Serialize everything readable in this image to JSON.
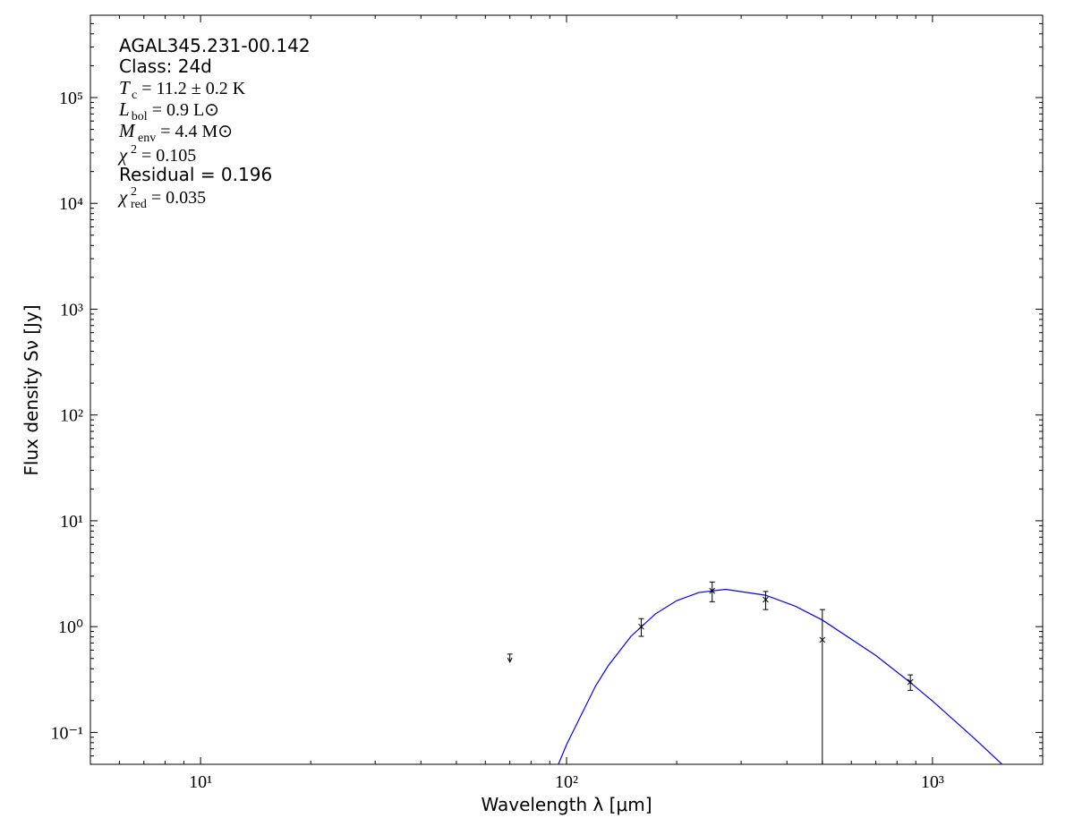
{
  "chart_data": {
    "type": "scatter",
    "xscale": "log",
    "yscale": "log",
    "xlabel": "Wavelength λ [μm]",
    "ylabel": "Flux density Sν [Jy]",
    "xlim": [
      5,
      2000
    ],
    "ylim": [
      0.05,
      600000
    ],
    "xticks": [
      {
        "value": 10,
        "label": "10¹"
      },
      {
        "value": 100,
        "label": "10²"
      },
      {
        "value": 1000,
        "label": "10³"
      }
    ],
    "yticks": [
      {
        "value": 0.1,
        "label": "10⁻¹"
      },
      {
        "value": 1,
        "label": "10⁰"
      },
      {
        "value": 10,
        "label": "10¹"
      },
      {
        "value": 100,
        "label": "10²"
      },
      {
        "value": 1000,
        "label": "10³"
      },
      {
        "value": 10000,
        "label": "10⁴"
      },
      {
        "value": 100000,
        "label": "10⁵"
      }
    ],
    "minor_ticks": true,
    "annotations": [
      {
        "text": "AGAL345.231-00.142"
      },
      {
        "text": "Class: 24d"
      },
      {
        "symbol": "T",
        "sub": "c",
        "rest": "= 11.2 ± 0.2 K"
      },
      {
        "symbol": "L",
        "sub": "bol",
        "rest": "= 0.9 L⊙"
      },
      {
        "symbol": "M",
        "sub": "env",
        "rest": "= 4.4 M⊙"
      },
      {
        "symbol": "χ",
        "sup": "2",
        "rest": "= 0.105"
      },
      {
        "text": "Residual = 0.196"
      },
      {
        "symbol": "χ",
        "sup": "2",
        "sub": "red",
        "rest": "= 0.035"
      }
    ],
    "points": {
      "color": "#000000",
      "x": [
        160,
        250,
        350,
        500,
        870
      ],
      "values": [
        1.0,
        2.18,
        1.8,
        0.75,
        0.3
      ],
      "errors": [
        0.19,
        0.46,
        0.35,
        0.7,
        0.05
      ]
    },
    "upper_limits": {
      "color": "#000000",
      "x": [
        70
      ],
      "values": [
        0.55
      ]
    },
    "fit": {
      "color": "#0000ff",
      "x": [
        95,
        100,
        120,
        130,
        150,
        175,
        200,
        230,
        272,
        350,
        420,
        500,
        700,
        870,
        1000,
        1300,
        1551
      ],
      "values": [
        0.05,
        0.0766,
        0.274,
        0.427,
        0.81,
        1.32,
        1.76,
        2.1,
        2.25,
        1.98,
        1.57,
        1.154,
        0.534,
        0.296,
        0.198,
        0.0881,
        0.0498
      ]
    }
  }
}
